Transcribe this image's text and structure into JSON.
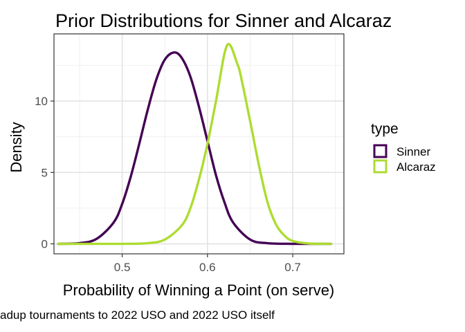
{
  "chart_data": {
    "type": "line",
    "title": "Prior Distributions for Sinner and Alcaraz",
    "xlabel": "Probability of Winning a Point (on serve)",
    "ylabel": "Density",
    "caption": "adup tournaments to 2022 USO and 2022 USO itself",
    "xlim": [
      0.42,
      0.76
    ],
    "ylim": [
      -0.7,
      14.7
    ],
    "x_ticks": [
      0.5,
      0.6,
      0.7
    ],
    "x_tick_labels": [
      "0.5",
      "0.6",
      "0.7"
    ],
    "y_ticks": [
      0,
      5,
      10
    ],
    "y_tick_labels": [
      "0",
      "5",
      "10"
    ],
    "grid": true,
    "legend": {
      "title": "type",
      "position": "right"
    },
    "series": [
      {
        "name": "Sinner",
        "color": "#440154",
        "x": [
          0.425,
          0.45,
          0.47,
          0.49,
          0.5,
          0.51,
          0.52,
          0.53,
          0.54,
          0.55,
          0.561,
          0.57,
          0.58,
          0.59,
          0.6,
          0.61,
          0.62,
          0.63,
          0.65,
          0.67,
          0.7,
          0.745
        ],
        "y": [
          0.0,
          0.05,
          0.35,
          1.5,
          2.8,
          4.7,
          7.0,
          9.4,
          11.5,
          12.9,
          13.4,
          13.0,
          11.7,
          9.6,
          7.2,
          4.8,
          2.9,
          1.5,
          0.3,
          0.05,
          0.0,
          0.0
        ]
      },
      {
        "name": "Alcaraz",
        "color": "#addc30",
        "x": [
          0.425,
          0.5,
          0.53,
          0.55,
          0.57,
          0.58,
          0.59,
          0.6,
          0.61,
          0.623,
          0.635,
          0.64,
          0.65,
          0.66,
          0.67,
          0.68,
          0.69,
          0.7,
          0.72,
          0.745
        ],
        "y": [
          0.0,
          0.0,
          0.05,
          0.3,
          1.3,
          2.5,
          4.5,
          7.0,
          10.0,
          13.9,
          12.6,
          11.5,
          8.6,
          5.6,
          3.0,
          1.4,
          0.6,
          0.2,
          0.02,
          0.0
        ]
      }
    ]
  }
}
